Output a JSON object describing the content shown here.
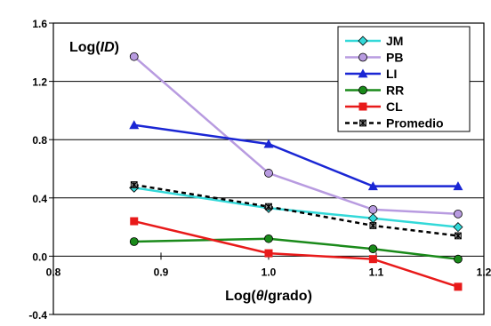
{
  "chart_data": {
    "type": "line",
    "title": "",
    "ylabel_prefix": "Log(",
    "ylabel_italic": "ID",
    "ylabel_suffix": ")",
    "xlabel_prefix": "Log(",
    "xlabel_italic": "θ",
    "xlabel_suffix": "/grado)",
    "xlim": [
      0.8,
      1.2
    ],
    "ylim": [
      -0.4,
      1.6
    ],
    "xticks": [
      "0.8",
      "0.9",
      "1.0",
      "1.1",
      "1.2"
    ],
    "xtick_values": [
      0.8,
      0.9,
      1.0,
      1.1,
      1.2
    ],
    "yticks": [
      "-0.4",
      "0.0",
      "0.4",
      "0.8",
      "1.2",
      "1.6"
    ],
    "ytick_values": [
      -0.4,
      0.0,
      0.4,
      0.8,
      1.2,
      1.6
    ],
    "grid": "horizontal",
    "legend_position": "top-right",
    "x": [
      0.875,
      1.0,
      1.097,
      1.176
    ],
    "series": [
      {
        "name": "JM",
        "values": [
          0.47,
          0.33,
          0.26,
          0.2
        ],
        "color": "#33d9d9",
        "marker": "diamond",
        "dash": false
      },
      {
        "name": "PB",
        "values": [
          1.37,
          0.57,
          0.32,
          0.29
        ],
        "color": "#b89be0",
        "marker": "circle",
        "dash": false
      },
      {
        "name": "LI",
        "values": [
          0.9,
          0.77,
          0.48,
          0.48
        ],
        "color": "#1a26d4",
        "marker": "triangle",
        "dash": false
      },
      {
        "name": "RR",
        "values": [
          0.1,
          0.12,
          0.05,
          -0.02
        ],
        "color": "#1a8a1a",
        "marker": "circle",
        "dash": false
      },
      {
        "name": "CL",
        "values": [
          0.24,
          0.02,
          -0.02,
          -0.21
        ],
        "color": "#e81a1a",
        "marker": "square",
        "dash": false
      },
      {
        "name": "Promedio",
        "values": [
          0.49,
          0.34,
          0.21,
          0.14
        ],
        "color": "#000000",
        "marker": "asterisk",
        "dash": true
      }
    ]
  }
}
